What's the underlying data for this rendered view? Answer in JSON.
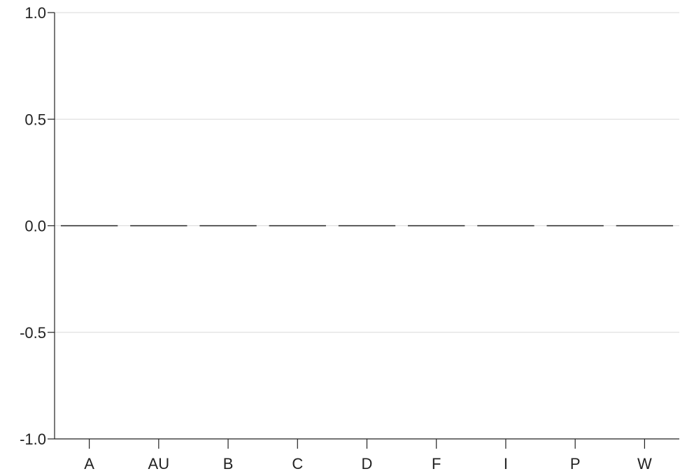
{
  "chart_data": {
    "type": "bar",
    "title": "",
    "xlabel": "",
    "ylabel": "",
    "categories": [
      "A",
      "AU",
      "B",
      "C",
      "D",
      "F",
      "I",
      "P",
      "W"
    ],
    "values": [
      0,
      0,
      0,
      0,
      0,
      0,
      0,
      0,
      0
    ],
    "ylim": [
      -1.0,
      1.0
    ],
    "yticks": [
      "1.0",
      "0.5",
      "0.0",
      "-0.5",
      "-1.0"
    ],
    "ytick_values": [
      1.0,
      0.5,
      0.0,
      -0.5,
      -1.0
    ],
    "grid": true,
    "legend": "none",
    "colors": {
      "axis": "#222222",
      "grid": "#d9d9d9",
      "bar_stroke": "#222222"
    }
  }
}
